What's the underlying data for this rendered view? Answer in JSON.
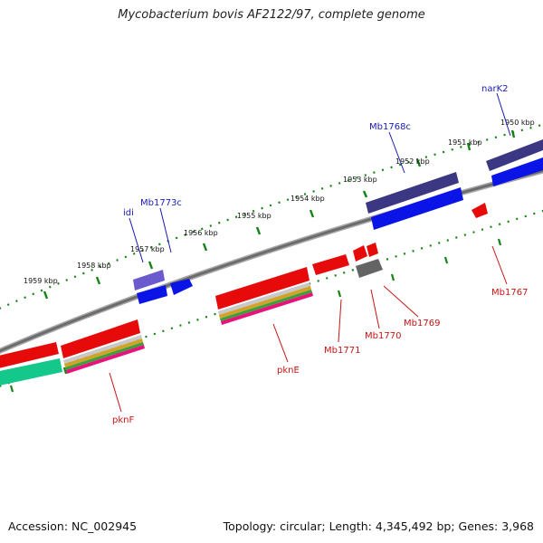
{
  "title": "Mycobacterium bovis AF2122/97, complete genome",
  "footer": {
    "accession": "Accession: NC_002945",
    "topology": "Topology: circular; Length: 4,345,492 bp; Genes: 3,968"
  },
  "scale_labels": [
    "1950 kbp",
    "1951 kbp",
    "1952 kbp",
    "1953 kbp",
    "1954 kbp",
    "1955 kbp",
    "1956 kbp",
    "1957 kbp",
    "1958 kbp",
    "1959 kbp"
  ],
  "gene_labels": {
    "narK2": "narK2",
    "Mb1768c": "Mb1768c",
    "Mb1773c": "Mb1773c",
    "idi": "idi",
    "Mb1767": "Mb1767",
    "Mb1769": "Mb1769",
    "Mb1770": "Mb1770",
    "Mb1771": "Mb1771",
    "pknE": "pknE",
    "pknF": "pknF"
  },
  "colors": {
    "reverse_label": "#1a1ab4",
    "forward_label": "#c81414",
    "reverse_gene": "#0a14e6",
    "cds_purple": "#3c3782",
    "forward_gene": "#e60a0a",
    "grey_gene": "#646464",
    "green_gene": "#14c88c",
    "backbone": "#7a7a7a",
    "tick_green": "#148214"
  }
}
